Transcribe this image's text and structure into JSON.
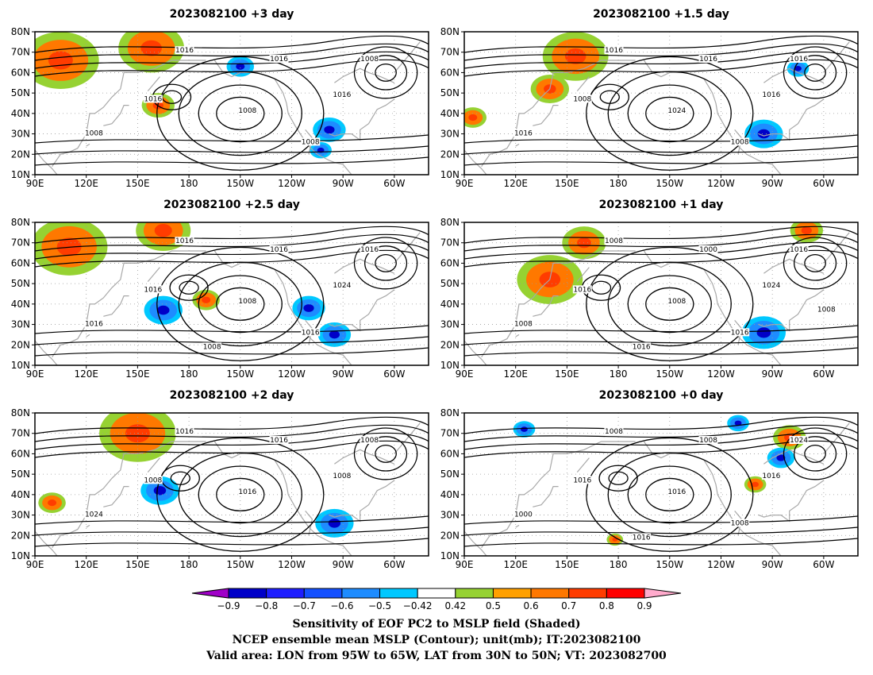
{
  "panels": [
    {
      "title": "2023082100 +3 day",
      "contour_labels": [
        "1016",
        "1016",
        "1016",
        "1008",
        "1008",
        "1016",
        "1008",
        "1008"
      ],
      "features": [
        {
          "type": "orange",
          "lon": 105,
          "lat": 66,
          "r": 14
        },
        {
          "type": "orange",
          "lon": 158,
          "lat": 72,
          "r": 12
        },
        {
          "type": "orange",
          "lon": 162,
          "lat": 44,
          "r": 6
        },
        {
          "type": "blue",
          "lon": -98,
          "lat": 32,
          "r": 6
        },
        {
          "type": "blue",
          "lon": -103,
          "lat": 22,
          "r": 4
        },
        {
          "type": "blue",
          "lon": -150,
          "lat": 63,
          "r": 5
        }
      ]
    },
    {
      "title": "2023082100 +1.5 day",
      "contour_labels": [
        "1016",
        "1016",
        "1008",
        "1024",
        "1016",
        "1016",
        "1016",
        "1008"
      ],
      "features": [
        {
          "type": "orange",
          "lon": 155,
          "lat": 68,
          "r": 12
        },
        {
          "type": "orange",
          "lon": 140,
          "lat": 52,
          "r": 7
        },
        {
          "type": "orange",
          "lon": 95,
          "lat": 38,
          "r": 5
        },
        {
          "type": "blue",
          "lon": -95,
          "lat": 30,
          "r": 7
        },
        {
          "type": "blue",
          "lon": -75,
          "lat": 62,
          "r": 4
        }
      ]
    },
    {
      "title": "2023082100 +2.5 day",
      "contour_labels": [
        "1016",
        "1016",
        "1016",
        "1008",
        "1016",
        "1024",
        "1016",
        "1016",
        "1008"
      ],
      "features": [
        {
          "type": "orange",
          "lon": 110,
          "lat": 68,
          "r": 14
        },
        {
          "type": "orange",
          "lon": 165,
          "lat": 76,
          "r": 10
        },
        {
          "type": "orange",
          "lon": -170,
          "lat": 42,
          "r": 5
        },
        {
          "type": "blue",
          "lon": 165,
          "lat": 37,
          "r": 7
        },
        {
          "type": "blue",
          "lon": -110,
          "lat": 38,
          "r": 6
        },
        {
          "type": "blue",
          "lon": -95,
          "lat": 25,
          "r": 6
        }
      ]
    },
    {
      "title": "2023082100 +1 day",
      "contour_labels": [
        "1008",
        "1000",
        "1016",
        "1008",
        "1008",
        "1024",
        "1016",
        "1016",
        "1016",
        "1008"
      ],
      "features": [
        {
          "type": "orange",
          "lon": 140,
          "lat": 52,
          "r": 12
        },
        {
          "type": "orange",
          "lon": 160,
          "lat": 70,
          "r": 8
        },
        {
          "type": "orange",
          "lon": -70,
          "lat": 76,
          "r": 6
        },
        {
          "type": "blue",
          "lon": -95,
          "lat": 26,
          "r": 8
        }
      ]
    },
    {
      "title": "2023082100 +2 day",
      "contour_labels": [
        "1016",
        "1016",
        "1008",
        "1016",
        "1024",
        "1008",
        "1008"
      ],
      "features": [
        {
          "type": "orange",
          "lon": 150,
          "lat": 70,
          "r": 14
        },
        {
          "type": "orange",
          "lon": 100,
          "lat": 36,
          "r": 5
        },
        {
          "type": "blue",
          "lon": 163,
          "lat": 42,
          "r": 7
        },
        {
          "type": "blue",
          "lon": -95,
          "lat": 26,
          "r": 7
        }
      ]
    },
    {
      "title": "2023082100 +0 day",
      "contour_labels": [
        "1008",
        "1008",
        "1016",
        "1016",
        "1000",
        "1016",
        "1024",
        "1008",
        "1016"
      ],
      "features": [
        {
          "type": "orange",
          "lon": -80,
          "lat": 68,
          "r": 6
        },
        {
          "type": "orange",
          "lon": -100,
          "lat": 45,
          "r": 4
        },
        {
          "type": "orange",
          "lon": 178,
          "lat": 18,
          "r": 3
        },
        {
          "type": "blue",
          "lon": -85,
          "lat": 58,
          "r": 5
        },
        {
          "type": "blue",
          "lon": -110,
          "lat": 75,
          "r": 4
        },
        {
          "type": "blue",
          "lon": 125,
          "lat": 72,
          "r": 4
        }
      ]
    }
  ],
  "axes": {
    "lat_labels": [
      "80N",
      "70N",
      "60N",
      "50N",
      "40N",
      "30N",
      "20N",
      "10N"
    ],
    "lat_values": [
      80,
      70,
      60,
      50,
      40,
      30,
      20,
      10
    ],
    "lon_labels": [
      "90E",
      "120E",
      "150E",
      "180",
      "150W",
      "120W",
      "90W",
      "60W"
    ],
    "lon_values": [
      90,
      120,
      150,
      180,
      210,
      240,
      270,
      300
    ],
    "lon_range": [
      90,
      320
    ],
    "lat_range": [
      10,
      80
    ]
  },
  "colorbar": {
    "tick_labels": [
      "-0.9",
      "-0.8",
      "-0.7",
      "-0.6",
      "-0.5",
      "-0.42",
      "0.42",
      "0.5",
      "0.6",
      "0.7",
      "0.8",
      "0.9"
    ],
    "colors": [
      "#a000c8",
      "#0000c8",
      "#1e1eff",
      "#1450ff",
      "#1e8cff",
      "#00c8ff",
      "#ffffff",
      "#96d232",
      "#ffa000",
      "#ff7800",
      "#ff3c00",
      "#ff0000",
      "#ffaacc"
    ]
  },
  "caption": {
    "line1": "Sensitivity of EOF PC2 to MSLP field (Shaded)",
    "line2": "NCEP ensemble mean MSLP (Contour); unit(mb); IT:2023082100",
    "line3": "Valid area: LON from 95W to 65W, LAT from 30N to 50N; VT: 2023082700"
  }
}
